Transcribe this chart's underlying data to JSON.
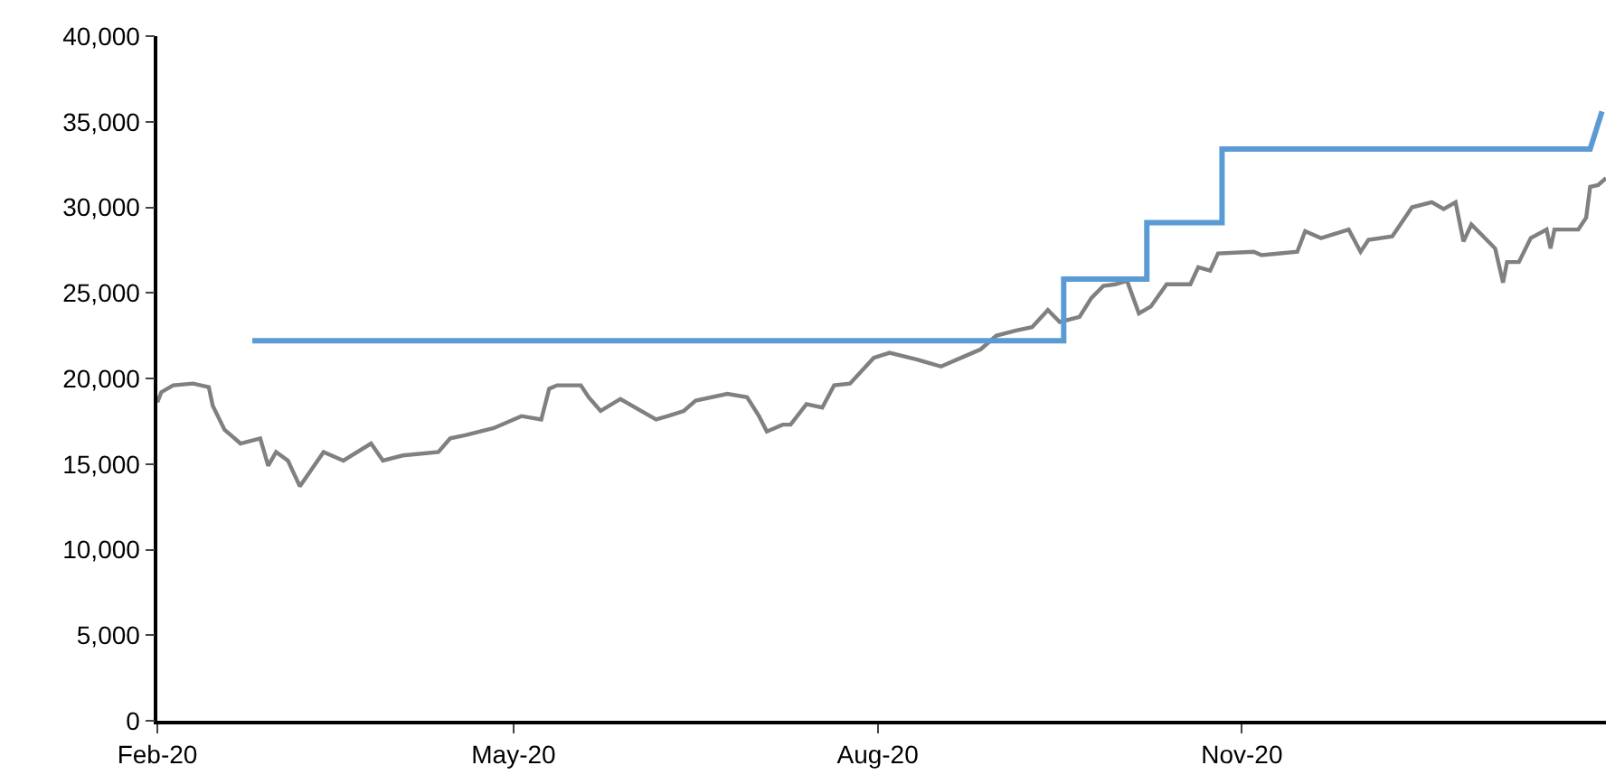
{
  "chart_data": {
    "type": "line",
    "xlim": [
      "2020-02-01",
      "2021-02-01"
    ],
    "xticks": [
      {
        "value": "2020-02-01",
        "label": "Feb-20"
      },
      {
        "value": "2020-05-01",
        "label": "May-20"
      },
      {
        "value": "2020-08-01",
        "label": "Aug-20"
      },
      {
        "value": "2020-11-01",
        "label": "Nov-20"
      }
    ],
    "ylim": [
      0,
      40000
    ],
    "yticks": [
      {
        "value": 0,
        "label": "0"
      },
      {
        "value": 5000,
        "label": "5,000"
      },
      {
        "value": 10000,
        "label": "10,000"
      },
      {
        "value": 15000,
        "label": "15,000"
      },
      {
        "value": 20000,
        "label": "20,000"
      },
      {
        "value": 25000,
        "label": "25,000"
      },
      {
        "value": 30000,
        "label": "30,000"
      },
      {
        "value": 35000,
        "label": "35,000"
      },
      {
        "value": 40000,
        "label": "40,000"
      }
    ],
    "marker": "none",
    "line_style": "solid",
    "series": [
      {
        "color": "#808080",
        "x": [
          "2020-02-01",
          "2020-02-02",
          "2020-02-05",
          "2020-02-10",
          "2020-02-14",
          "2020-02-15",
          "2020-02-18",
          "2020-02-22",
          "2020-02-27",
          "2020-02-29",
          "2020-03-02",
          "2020-03-05",
          "2020-03-08",
          "2020-03-11",
          "2020-03-14",
          "2020-03-19",
          "2020-03-26",
          "2020-03-29",
          "2020-04-03",
          "2020-04-12",
          "2020-04-15",
          "2020-04-19",
          "2020-04-26",
          "2020-05-03",
          "2020-05-08",
          "2020-05-10",
          "2020-05-12",
          "2020-05-18",
          "2020-05-20",
          "2020-05-23",
          "2020-05-28",
          "2020-06-06",
          "2020-06-09",
          "2020-06-13",
          "2020-06-16",
          "2020-06-24",
          "2020-06-29",
          "2020-07-02",
          "2020-07-04",
          "2020-07-08",
          "2020-07-10",
          "2020-07-14",
          "2020-07-18",
          "2020-07-21",
          "2020-07-25",
          "2020-07-31",
          "2020-08-04",
          "2020-08-11",
          "2020-08-17",
          "2020-08-23",
          "2020-08-27",
          "2020-08-31",
          "2020-09-05",
          "2020-09-09",
          "2020-09-13",
          "2020-09-16",
          "2020-09-21",
          "2020-09-24",
          "2020-09-27",
          "2020-09-30",
          "2020-10-03",
          "2020-10-06",
          "2020-10-09",
          "2020-10-13",
          "2020-10-19",
          "2020-10-21",
          "2020-10-24",
          "2020-10-26",
          "2020-11-04",
          "2020-11-06",
          "2020-11-15",
          "2020-11-17",
          "2020-11-21",
          "2020-11-28",
          "2020-12-01",
          "2020-12-03",
          "2020-12-09",
          "2020-12-14",
          "2020-12-19",
          "2020-12-22",
          "2020-12-25",
          "2020-12-27",
          "2020-12-29",
          "2021-01-04",
          "2021-01-06",
          "2021-01-07",
          "2021-01-10",
          "2021-01-13",
          "2021-01-17",
          "2021-01-18",
          "2021-01-19",
          "2021-01-25",
          "2021-01-27",
          "2021-01-28",
          "2021-01-30",
          "2021-02-01"
        ],
        "values": [
          18600,
          19200,
          19600,
          19700,
          19500,
          18400,
          17000,
          16200,
          16500,
          14900,
          15700,
          15200,
          13700,
          14700,
          15700,
          15200,
          16200,
          15200,
          15500,
          15700,
          16500,
          16700,
          17100,
          17800,
          17600,
          19400,
          19600,
          19600,
          18900,
          18100,
          18800,
          17600,
          17800,
          18100,
          18700,
          19100,
          18900,
          17800,
          16900,
          17300,
          17300,
          18500,
          18300,
          19600,
          19700,
          21200,
          21500,
          21100,
          20700,
          21300,
          21700,
          22500,
          22800,
          23000,
          24000,
          23300,
          23600,
          24700,
          25400,
          25500,
          25700,
          23800,
          24200,
          25500,
          25500,
          26500,
          26300,
          27300,
          27400,
          27200,
          27400,
          28600,
          28200,
          28700,
          27400,
          28100,
          28300,
          30000,
          30300,
          29900,
          30300,
          28000,
          29000,
          27600,
          25600,
          26800,
          26800,
          28200,
          28700,
          27600,
          28700,
          28700,
          29400,
          31200,
          31300,
          31700
        ]
      },
      {
        "color": "#5b9bd5",
        "x": [
          "2020-02-25",
          "2020-09-17",
          "2020-09-17",
          "2020-10-08",
          "2020-10-08",
          "2020-10-27",
          "2020-10-27",
          "2021-01-28",
          "2021-01-31"
        ],
        "values": [
          22200,
          22200,
          25800,
          25800,
          29100,
          29100,
          33400,
          33400,
          35600
        ]
      }
    ]
  }
}
